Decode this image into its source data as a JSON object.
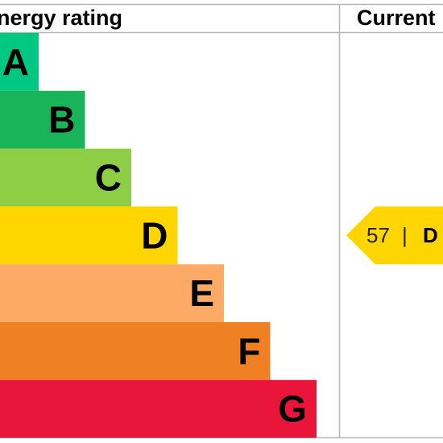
{
  "chart_data": {
    "type": "bar",
    "title": "Energy rating",
    "current_header": "Current",
    "categories": [
      "A",
      "B",
      "C",
      "D",
      "E",
      "F",
      "G"
    ],
    "colors": [
      "#00c781",
      "#19b459",
      "#8dce46",
      "#ffd500",
      "#fcaa65",
      "#ef8023",
      "#e9153b"
    ],
    "letter_colors": [
      "#000000",
      "#000000",
      "#000000",
      "#000000",
      "#000000",
      "#000000",
      "#000000"
    ],
    "current": {
      "value": "57",
      "separator": "|",
      "band": "D",
      "color": "#ffd500"
    }
  }
}
